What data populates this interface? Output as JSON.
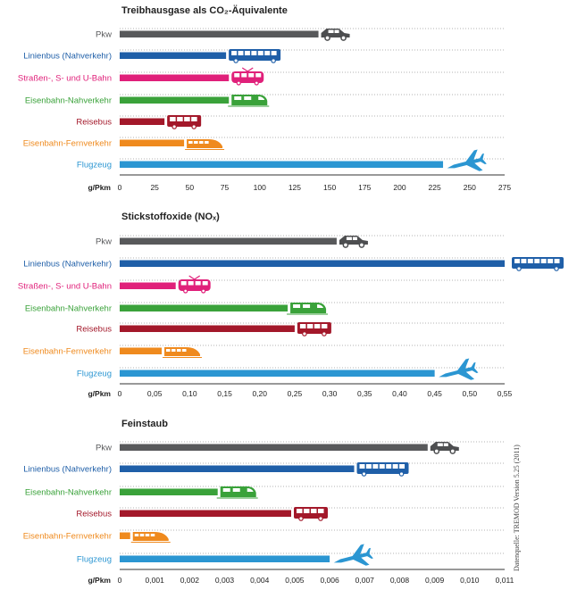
{
  "source_note": "Datenquelle: TREMOD Version 5.25 (2011)",
  "chart_data": [
    {
      "type": "bar",
      "orientation": "horizontal",
      "title": "Treibhausgase als CO₂-Äquivalente",
      "unit_label": "g/Pkm",
      "xlim": [
        0,
        275
      ],
      "ticks": [
        "0",
        "25",
        "50",
        "75",
        "100",
        "125",
        "150",
        "175",
        "200",
        "225",
        "250",
        "275"
      ],
      "categories": [
        "Pkw",
        "Linienbus (Nahverkehr)",
        "Straßen-, S- und U-Bahn",
        "Eisenbahn-Nahverkehr",
        "Reisebus",
        "Eisenbahn-Fernverkehr",
        "Flugzeug"
      ],
      "values": [
        142,
        76,
        78,
        78,
        32,
        46,
        231
      ],
      "icons": [
        "car-icon",
        "bus-icon",
        "tram-icon",
        "train-icon",
        "coach-icon",
        "highspeed-train-icon",
        "airplane-icon"
      ]
    },
    {
      "type": "bar",
      "orientation": "horizontal",
      "title": "Stickstoffoxide (NOₓ)",
      "unit_label": "g/Pkm",
      "xlim": [
        0,
        0.55
      ],
      "ticks": [
        "0",
        "0,05",
        "0,10",
        "0,15",
        "0,20",
        "0,25",
        "0,30",
        "0,35",
        "0,40",
        "0,45",
        "0,50",
        "0,55"
      ],
      "categories": [
        "Pkw",
        "Linienbus (Nahverkehr)",
        "Straßen-, S- und U-Bahn",
        "Eisenbahn-Nahverkehr",
        "Reisebus",
        "Eisenbahn-Fernverkehr",
        "Flugzeug"
      ],
      "values": [
        0.31,
        0.55,
        0.08,
        0.24,
        0.25,
        0.06,
        0.45
      ],
      "icons": [
        "car-icon",
        "bus-icon",
        "tram-icon",
        "train-icon",
        "coach-icon",
        "highspeed-train-icon",
        "airplane-icon"
      ]
    },
    {
      "type": "bar",
      "orientation": "horizontal",
      "title": "Feinstaub",
      "unit_label": "g/Pkm",
      "xlim": [
        0,
        0.011
      ],
      "ticks": [
        "0",
        "0,001",
        "0,002",
        "0,003",
        "0,004",
        "0,005",
        "0,006",
        "0,007",
        "0,008",
        "0,009",
        "0,010",
        "0,011"
      ],
      "categories": [
        "Pkw",
        "Linienbus (Nahverkehr)",
        "Eisenbahn-Nahverkehr",
        "Reisebus",
        "Eisenbahn-Fernverkehr",
        "Flugzeug"
      ],
      "values": [
        0.0088,
        0.0067,
        0.0028,
        0.0049,
        0.0003,
        0.006
      ],
      "icons": [
        "car-icon",
        "bus-icon",
        "train-icon",
        "coach-icon",
        "highspeed-train-icon",
        "airplane-icon"
      ]
    }
  ],
  "colors": {
    "Pkw": "#58595b",
    "Linienbus (Nahverkehr)": "#1f5fa8",
    "Straßen-, S- und U-Bahn": "#e0207a",
    "Eisenbahn-Nahverkehr": "#3aa23a",
    "Reisebus": "#a3182a",
    "Eisenbahn-Fernverkehr": "#ef8a1e",
    "Flugzeug": "#2b96d2"
  }
}
